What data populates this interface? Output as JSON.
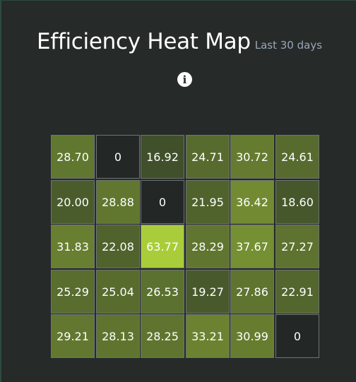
{
  "header": {
    "title": "Efficiency Heat Map",
    "subtitle": "Last 30 days"
  },
  "icons": {
    "info": "info-icon"
  },
  "colors": {
    "min": "#40502b",
    "max": "#a9cd3a",
    "zero": "#232827"
  },
  "chart_data": {
    "type": "heatmap",
    "rows": 5,
    "cols": 6,
    "values": [
      [
        28.7,
        0,
        16.92,
        24.71,
        30.72,
        24.61
      ],
      [
        20.0,
        28.88,
        0,
        21.95,
        36.42,
        18.6
      ],
      [
        31.83,
        22.08,
        63.77,
        28.29,
        37.67,
        27.27
      ],
      [
        25.29,
        25.04,
        26.53,
        19.27,
        27.86,
        22.91
      ],
      [
        29.21,
        28.13,
        28.25,
        33.21,
        30.99,
        0
      ]
    ],
    "labels": [
      [
        "28.70",
        "0",
        "16.92",
        "24.71",
        "30.72",
        "24.61"
      ],
      [
        "20.00",
        "28.88",
        "0",
        "21.95",
        "36.42",
        "18.60"
      ],
      [
        "31.83",
        "22.08",
        "63.77",
        "28.29",
        "37.67",
        "27.27"
      ],
      [
        "25.29",
        "25.04",
        "26.53",
        "19.27",
        "27.86",
        "22.91"
      ],
      [
        "29.21",
        "28.13",
        "28.25",
        "33.21",
        "30.99",
        "0"
      ]
    ]
  }
}
